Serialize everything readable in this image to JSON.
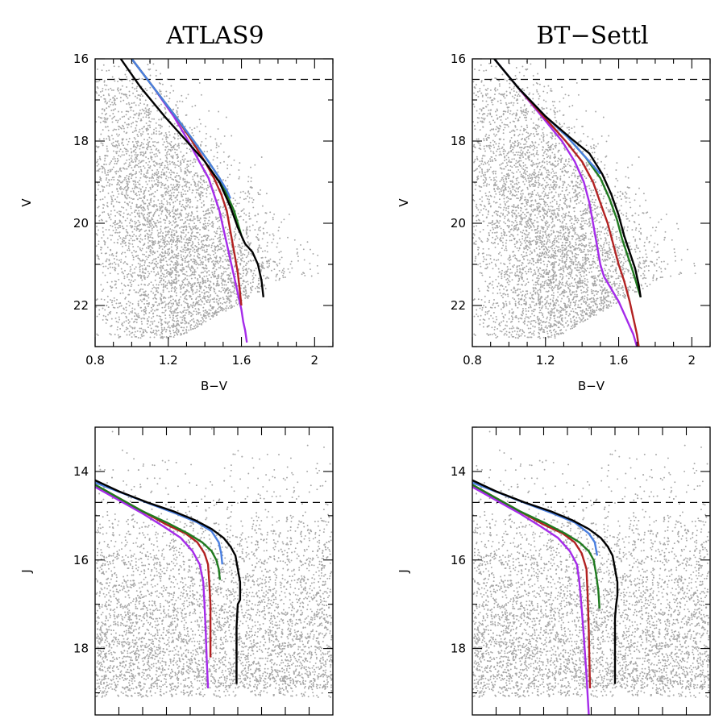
{
  "panel_titles": [
    "ATLAS9",
    "BT−Settl"
  ],
  "colors": {
    "scatter": "#a6a6a6",
    "black": "#000000",
    "blue": "#4a7fe0",
    "green": "#1f7a1f",
    "red": "#b22222",
    "purple": "#a52bea"
  },
  "chart_data": [
    {
      "type": "scatter",
      "title": "ATLAS9",
      "xlabel": "B−V",
      "ylabel": "V",
      "xlim": [
        0.8,
        2.1
      ],
      "ylim": [
        23,
        16
      ],
      "xticks": [
        "0.8",
        "1.2",
        "1.6",
        "2"
      ],
      "yticks": [
        "16",
        "18",
        "20",
        "22"
      ],
      "reference_line": {
        "style": "dashed",
        "y": 16.5
      },
      "background_points": "dense field-star distribution, roughly x 0.8-1.9, y 16-22.8",
      "series": [
        {
          "color": "black",
          "x": [
            0.94,
            1.05,
            1.18,
            1.3,
            1.4,
            1.48,
            1.54,
            1.58,
            1.6,
            1.62,
            1.66,
            1.69,
            1.71,
            1.72
          ],
          "y": [
            16.0,
            16.7,
            17.4,
            18.0,
            18.5,
            19.0,
            19.6,
            20.1,
            20.3,
            20.5,
            20.7,
            21.0,
            21.4,
            21.8
          ]
        },
        {
          "color": "blue",
          "x": [
            1.0,
            1.12,
            1.24,
            1.34,
            1.42,
            1.48,
            1.52,
            1.54
          ],
          "y": [
            16.0,
            16.7,
            17.4,
            18.0,
            18.5,
            18.9,
            19.2,
            19.4
          ]
        },
        {
          "color": "green",
          "x": [
            1.0,
            1.12,
            1.24,
            1.34,
            1.42,
            1.48,
            1.52,
            1.56,
            1.58,
            1.6
          ],
          "y": [
            16.0,
            16.7,
            17.4,
            18.0,
            18.5,
            18.9,
            19.3,
            19.7,
            20.0,
            20.3
          ]
        },
        {
          "color": "red",
          "x": [
            1.0,
            1.12,
            1.24,
            1.33,
            1.4,
            1.45,
            1.49,
            1.52,
            1.54,
            1.56,
            1.58,
            1.59,
            1.6
          ],
          "y": [
            16.0,
            16.7,
            17.4,
            18.0,
            18.5,
            18.9,
            19.3,
            19.7,
            20.2,
            20.7,
            21.2,
            21.6,
            22.0
          ]
        },
        {
          "color": "purple",
          "x": [
            1.0,
            1.12,
            1.23,
            1.31,
            1.37,
            1.42,
            1.45,
            1.48,
            1.5,
            1.52,
            1.54,
            1.56,
            1.58,
            1.6,
            1.61,
            1.62,
            1.63
          ],
          "y": [
            16.0,
            16.7,
            17.4,
            18.0,
            18.5,
            18.9,
            19.3,
            19.7,
            20.1,
            20.5,
            20.9,
            21.3,
            21.7,
            22.1,
            22.4,
            22.6,
            22.9
          ]
        }
      ]
    },
    {
      "type": "scatter",
      "title": "BT−Settl",
      "xlabel": "B−V",
      "ylabel": "V",
      "xlim": [
        0.8,
        2.1
      ],
      "ylim": [
        23,
        16
      ],
      "xticks": [
        "0.8",
        "1.2",
        "1.6",
        "2"
      ],
      "yticks": [
        "16",
        "18",
        "20",
        "22"
      ],
      "reference_line": {
        "style": "dashed",
        "y": 16.5
      },
      "background_points": "dense field-star distribution, roughly x 0.8-1.9, y 16-22.8",
      "series": [
        {
          "color": "black",
          "x": [
            0.92,
            1.05,
            1.2,
            1.33,
            1.44,
            1.51,
            1.56,
            1.6,
            1.63,
            1.66,
            1.69,
            1.71,
            1.72
          ],
          "y": [
            16.0,
            16.7,
            17.4,
            17.9,
            18.3,
            18.8,
            19.3,
            19.8,
            20.3,
            20.7,
            21.1,
            21.5,
            21.8
          ]
        },
        {
          "color": "blue",
          "x": [
            0.92,
            1.05,
            1.2,
            1.32,
            1.4,
            1.46,
            1.5
          ],
          "y": [
            16.0,
            16.7,
            17.4,
            17.9,
            18.3,
            18.6,
            18.8
          ]
        },
        {
          "color": "green",
          "x": [
            0.92,
            1.05,
            1.2,
            1.32,
            1.42,
            1.5,
            1.55,
            1.59,
            1.62,
            1.65,
            1.68,
            1.7,
            1.72
          ],
          "y": [
            16.0,
            16.7,
            17.4,
            17.9,
            18.4,
            18.9,
            19.4,
            19.9,
            20.4,
            20.8,
            21.2,
            21.5,
            21.8
          ]
        },
        {
          "color": "red",
          "x": [
            0.92,
            1.05,
            1.19,
            1.31,
            1.4,
            1.46,
            1.5,
            1.54,
            1.57,
            1.6,
            1.63,
            1.66,
            1.68,
            1.7,
            1.71
          ],
          "y": [
            16.0,
            16.7,
            17.4,
            18.0,
            18.5,
            19.0,
            19.5,
            20.0,
            20.5,
            21.0,
            21.4,
            21.9,
            22.3,
            22.7,
            23.0
          ]
        },
        {
          "color": "purple",
          "x": [
            0.92,
            1.05,
            1.18,
            1.29,
            1.36,
            1.41,
            1.44,
            1.46,
            1.48,
            1.5,
            1.52,
            1.56,
            1.6,
            1.64,
            1.68,
            1.7
          ],
          "y": [
            16.0,
            16.7,
            17.4,
            18.0,
            18.5,
            19.0,
            19.5,
            20.0,
            20.5,
            21.0,
            21.3,
            21.6,
            21.9,
            22.3,
            22.7,
            23.0
          ]
        }
      ]
    },
    {
      "type": "scatter",
      "title": "",
      "xlabel": "",
      "ylabel": "J",
      "xlim": [
        0,
        10
      ],
      "ylim": [
        19.5,
        13
      ],
      "xticks": [],
      "yticks": [
        "14",
        "16",
        "18"
      ],
      "reference_line": {
        "style": "dashed",
        "y": 14.7
      },
      "background_points": "dense field-star distribution across full width, y 13-19",
      "series": [
        {
          "color": "black",
          "x": [
            0.0,
            1.0,
            2.2,
            3.3,
            4.2,
            4.9,
            5.4,
            5.7,
            5.9,
            6.0,
            6.1,
            6.1,
            6.1,
            6.0,
            5.95,
            5.95,
            5.95
          ],
          "y": [
            14.2,
            14.45,
            14.7,
            14.9,
            15.1,
            15.3,
            15.5,
            15.7,
            15.9,
            16.2,
            16.5,
            16.8,
            16.9,
            17.0,
            17.5,
            18.2,
            18.8
          ]
        },
        {
          "color": "blue",
          "x": [
            0.0,
            1.2,
            2.4,
            3.4,
            4.3,
            4.9,
            5.2,
            5.3,
            5.35
          ],
          "y": [
            14.25,
            14.5,
            14.75,
            14.95,
            15.15,
            15.35,
            15.6,
            15.85,
            16.1
          ]
        },
        {
          "color": "green",
          "x": [
            0.0,
            1.0,
            2.0,
            3.0,
            3.9,
            4.5,
            4.9,
            5.1,
            5.2,
            5.25
          ],
          "y": [
            14.3,
            14.6,
            14.9,
            15.15,
            15.4,
            15.6,
            15.8,
            16.0,
            16.2,
            16.45
          ]
        },
        {
          "color": "red",
          "x": [
            0.0,
            1.0,
            2.0,
            3.0,
            3.8,
            4.3,
            4.6,
            4.75,
            4.8,
            4.85,
            4.85,
            4.85
          ],
          "y": [
            14.3,
            14.6,
            14.9,
            15.2,
            15.4,
            15.6,
            15.85,
            16.1,
            16.5,
            17.0,
            17.6,
            18.2
          ]
        },
        {
          "color": "purple",
          "x": [
            0.0,
            1.0,
            2.0,
            2.9,
            3.6,
            4.1,
            4.4,
            4.55,
            4.6,
            4.65,
            4.7,
            4.75
          ],
          "y": [
            14.35,
            14.65,
            14.95,
            15.25,
            15.5,
            15.8,
            16.1,
            16.5,
            17.0,
            17.6,
            18.3,
            18.9
          ]
        }
      ]
    },
    {
      "type": "scatter",
      "title": "",
      "xlabel": "",
      "ylabel": "J",
      "xlim": [
        0,
        10
      ],
      "ylim": [
        19.5,
        13
      ],
      "xticks": [],
      "yticks": [
        "14",
        "16",
        "18"
      ],
      "reference_line": {
        "style": "dashed",
        "y": 14.7
      },
      "background_points": "dense field-star distribution across full width, y 13-19",
      "series": [
        {
          "color": "black",
          "x": [
            0.0,
            1.0,
            2.2,
            3.3,
            4.2,
            4.9,
            5.4,
            5.7,
            5.9,
            6.0,
            6.1,
            6.1,
            6.05,
            6.0,
            6.0,
            6.0
          ],
          "y": [
            14.2,
            14.45,
            14.7,
            14.9,
            15.1,
            15.3,
            15.5,
            15.7,
            15.9,
            16.2,
            16.5,
            16.8,
            17.0,
            17.3,
            18.0,
            18.8
          ]
        },
        {
          "color": "blue",
          "x": [
            0.0,
            1.2,
            2.4,
            3.4,
            4.3,
            4.9,
            5.15,
            5.25
          ],
          "y": [
            14.25,
            14.5,
            14.75,
            14.95,
            15.15,
            15.4,
            15.6,
            15.9
          ]
        },
        {
          "color": "green",
          "x": [
            0.0,
            1.0,
            2.0,
            3.0,
            3.9,
            4.5,
            4.9,
            5.1,
            5.2,
            5.3,
            5.35
          ],
          "y": [
            14.3,
            14.6,
            14.9,
            15.15,
            15.4,
            15.6,
            15.8,
            16.0,
            16.3,
            16.7,
            17.1
          ]
        },
        {
          "color": "red",
          "x": [
            0.0,
            1.0,
            2.0,
            3.0,
            3.8,
            4.3,
            4.6,
            4.8,
            4.85,
            4.9,
            4.95
          ],
          "y": [
            14.3,
            14.6,
            14.9,
            15.2,
            15.4,
            15.6,
            15.85,
            16.2,
            16.8,
            17.6,
            18.9
          ]
        },
        {
          "color": "purple",
          "x": [
            0.0,
            1.0,
            2.0,
            2.9,
            3.6,
            4.1,
            4.4,
            4.5,
            4.6,
            4.7,
            4.8,
            4.9
          ],
          "y": [
            14.35,
            14.65,
            14.95,
            15.25,
            15.5,
            15.8,
            16.1,
            16.5,
            17.1,
            17.8,
            18.6,
            19.5
          ]
        }
      ]
    }
  ]
}
